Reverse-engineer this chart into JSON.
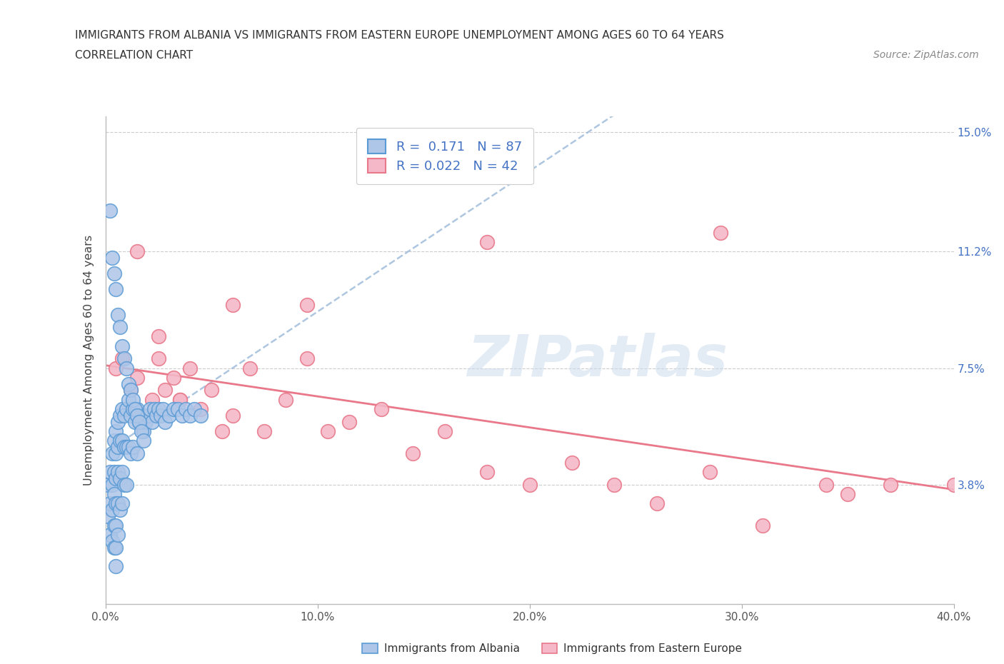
{
  "title_line1": "IMMIGRANTS FROM ALBANIA VS IMMIGRANTS FROM EASTERN EUROPE UNEMPLOYMENT AMONG AGES 60 TO 64 YEARS",
  "title_line2": "CORRELATION CHART",
  "source_text": "Source: ZipAtlas.com",
  "ylabel": "Unemployment Among Ages 60 to 64 years",
  "xlim": [
    0.0,
    0.4
  ],
  "ylim": [
    0.0,
    0.155
  ],
  "xtick_labels": [
    "0.0%",
    "10.0%",
    "20.0%",
    "30.0%",
    "40.0%"
  ],
  "xtick_values": [
    0.0,
    0.1,
    0.2,
    0.3,
    0.4
  ],
  "ytick_labels": [
    "3.8%",
    "7.5%",
    "11.2%",
    "15.0%"
  ],
  "ytick_values": [
    0.038,
    0.075,
    0.112,
    0.15
  ],
  "watermark": "ZIPatlas",
  "albania_color": "#aec6e8",
  "albania_edge_color": "#5b9bd5",
  "eastern_color": "#f4b8c8",
  "eastern_edge_color": "#e8788a",
  "albania_R": 0.171,
  "albania_N": 87,
  "eastern_R": 0.022,
  "eastern_N": 42,
  "trend_albania_color": "#9ab8d8",
  "trend_eastern_color": "#e8788a",
  "legend_label_albania": "Immigrants from Albania",
  "legend_label_eastern": "Immigrants from Eastern Europe",
  "albania_x": [
    0.001,
    0.001,
    0.002,
    0.002,
    0.002,
    0.003,
    0.003,
    0.003,
    0.003,
    0.004,
    0.004,
    0.004,
    0.004,
    0.004,
    0.005,
    0.005,
    0.005,
    0.005,
    0.005,
    0.005,
    0.005,
    0.006,
    0.006,
    0.006,
    0.006,
    0.006,
    0.007,
    0.007,
    0.007,
    0.007,
    0.008,
    0.008,
    0.008,
    0.008,
    0.009,
    0.009,
    0.009,
    0.01,
    0.01,
    0.01,
    0.011,
    0.011,
    0.012,
    0.012,
    0.013,
    0.013,
    0.014,
    0.015,
    0.015,
    0.016,
    0.017,
    0.018,
    0.019,
    0.02,
    0.021,
    0.022,
    0.023,
    0.024,
    0.025,
    0.026,
    0.027,
    0.028,
    0.03,
    0.032,
    0.034,
    0.036,
    0.038,
    0.04,
    0.042,
    0.045,
    0.002,
    0.003,
    0.004,
    0.005,
    0.006,
    0.007,
    0.008,
    0.009,
    0.01,
    0.011,
    0.012,
    0.013,
    0.014,
    0.015,
    0.016,
    0.017,
    0.018
  ],
  "albania_y": [
    0.038,
    0.028,
    0.042,
    0.032,
    0.022,
    0.048,
    0.038,
    0.03,
    0.02,
    0.052,
    0.042,
    0.035,
    0.025,
    0.018,
    0.055,
    0.048,
    0.04,
    0.032,
    0.025,
    0.018,
    0.012,
    0.058,
    0.05,
    0.042,
    0.032,
    0.022,
    0.06,
    0.052,
    0.04,
    0.03,
    0.062,
    0.052,
    0.042,
    0.032,
    0.06,
    0.05,
    0.038,
    0.062,
    0.05,
    0.038,
    0.065,
    0.05,
    0.06,
    0.048,
    0.062,
    0.05,
    0.058,
    0.062,
    0.048,
    0.058,
    0.06,
    0.055,
    0.058,
    0.06,
    0.062,
    0.058,
    0.062,
    0.06,
    0.062,
    0.06,
    0.062,
    0.058,
    0.06,
    0.062,
    0.062,
    0.06,
    0.062,
    0.06,
    0.062,
    0.06,
    0.125,
    0.11,
    0.105,
    0.1,
    0.092,
    0.088,
    0.082,
    0.078,
    0.075,
    0.07,
    0.068,
    0.065,
    0.062,
    0.06,
    0.058,
    0.055,
    0.052
  ],
  "eastern_x": [
    0.005,
    0.008,
    0.012,
    0.015,
    0.018,
    0.022,
    0.025,
    0.028,
    0.032,
    0.035,
    0.04,
    0.045,
    0.05,
    0.055,
    0.06,
    0.068,
    0.075,
    0.085,
    0.095,
    0.105,
    0.115,
    0.13,
    0.145,
    0.16,
    0.18,
    0.2,
    0.22,
    0.24,
    0.26,
    0.285,
    0.31,
    0.34,
    0.37,
    0.4,
    0.015,
    0.025,
    0.035,
    0.06,
    0.095,
    0.18,
    0.35,
    0.29
  ],
  "eastern_y": [
    0.075,
    0.078,
    0.068,
    0.072,
    0.058,
    0.065,
    0.078,
    0.068,
    0.072,
    0.065,
    0.075,
    0.062,
    0.068,
    0.055,
    0.06,
    0.075,
    0.055,
    0.065,
    0.095,
    0.055,
    0.058,
    0.062,
    0.048,
    0.055,
    0.042,
    0.038,
    0.045,
    0.038,
    0.032,
    0.042,
    0.025,
    0.038,
    0.038,
    0.038,
    0.112,
    0.085,
    0.065,
    0.095,
    0.078,
    0.115,
    0.035,
    0.118
  ]
}
